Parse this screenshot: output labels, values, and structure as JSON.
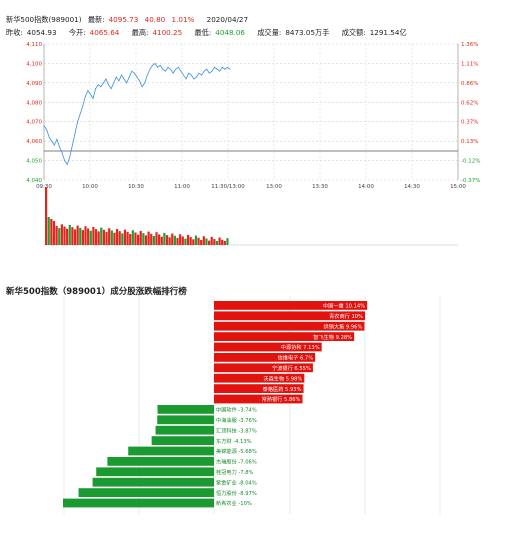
{
  "header": {
    "name": "新华500指数(989001)",
    "latest_label": "最新:",
    "latest_value": "4095.73",
    "change": "40.80",
    "change_pct": "1.01%",
    "date": "2020/04/27",
    "prev_close_label": "昨收:",
    "prev_close": "4054.93",
    "open_label": "今开:",
    "open": "4065.64",
    "high_label": "最高:",
    "high": "4100.25",
    "low_label": "最低:",
    "low": "4048.06",
    "volume_label": "成交量:",
    "volume": "8473.05万手",
    "amount_label": "成交额:",
    "amount": "1291.54亿"
  },
  "colors": {
    "up": "#e0261f",
    "down": "#1fa02f",
    "line": "#3a8ee6",
    "prev_close_line": "#555555"
  },
  "chart_data": [
    {
      "type": "line",
      "title": "",
      "x_ticks": [
        "09:30",
        "10:00",
        "10:30",
        "11:00",
        "11:30/13:00",
        "13:00",
        "13:30",
        "14:00",
        "14:30",
        "15:00"
      ],
      "y_left_ticks": [
        "4,110",
        "4,100",
        "4,090",
        "4,080",
        "4,070",
        "4,060",
        "4,050",
        "4,040"
      ],
      "y_right_ticks": [
        "1.36%",
        "1.11%",
        "0.86%",
        "0.62%",
        "0.37%",
        "0.13%",
        "-0.12%",
        "-0.37%"
      ],
      "ylim": [
        4040,
        4110
      ],
      "prev_close": 4054.93,
      "series": [
        {
          "values": [
            4068,
            4066,
            4062,
            4060,
            4058,
            4061,
            4057,
            4054,
            4050,
            4048,
            4052,
            4058,
            4064,
            4070,
            4074,
            4078,
            4083,
            4086,
            4084,
            4082,
            4087,
            4089,
            4088,
            4090,
            4092,
            4089,
            4087,
            4090,
            4093,
            4091,
            4094,
            4092,
            4090,
            4093,
            4096,
            4095,
            4093,
            4091,
            4088,
            4090,
            4094,
            4097,
            4099,
            4100,
            4098,
            4099,
            4097,
            4096,
            4098,
            4097,
            4095,
            4097,
            4098,
            4096,
            4094,
            4092,
            4095,
            4094,
            4092,
            4093,
            4095,
            4094,
            4096,
            4097,
            4095,
            4096,
            4098,
            4097,
            4096,
            4098,
            4097,
            4098,
            4097
          ]
        }
      ]
    },
    {
      "type": "bar",
      "title": "新华500指数（989001）成分股涨跌幅排行榜",
      "series": [
        {
          "values": [
            10.14,
            10,
            9.96,
            9.28,
            7.13,
            6.7,
            6.55,
            5.98,
            5.93,
            5.86,
            -3.74,
            -3.76,
            -3.87,
            -4.13,
            -5.68,
            -7.06,
            -7.8,
            -8.04,
            -8.97,
            -10
          ]
        }
      ]
    }
  ],
  "ranking": {
    "up": [
      {
        "label": "中国一重 10.14%"
      },
      {
        "label": "青农商行 10%"
      },
      {
        "label": "供销大集 9.96%"
      },
      {
        "label": "智飞生物 9.28%"
      },
      {
        "label": "中源协和 7.13%"
      },
      {
        "label": "信维电子 6.7%"
      },
      {
        "label": "宁波银行 6.55%"
      },
      {
        "label": "沃森生物 5.98%"
      },
      {
        "label": "泰格医药 5.93%"
      },
      {
        "label": "常熟银行 5.86%"
      }
    ],
    "down": [
      {
        "label": "中国软件 -3.74%"
      },
      {
        "label": "中海油服 -3.76%"
      },
      {
        "label": "汇顶科技 -3.87%"
      },
      {
        "label": "东方财 -4.13%"
      },
      {
        "label": "美锦能源 -5.68%"
      },
      {
        "label": "杰瑞股份 -7.06%"
      },
      {
        "label": "桂冠电力 -7.8%"
      },
      {
        "label": "紫金矿业 -8.04%"
      },
      {
        "label": "恒力股份 -8.97%"
      },
      {
        "label": "新希农业 -10%"
      }
    ]
  }
}
